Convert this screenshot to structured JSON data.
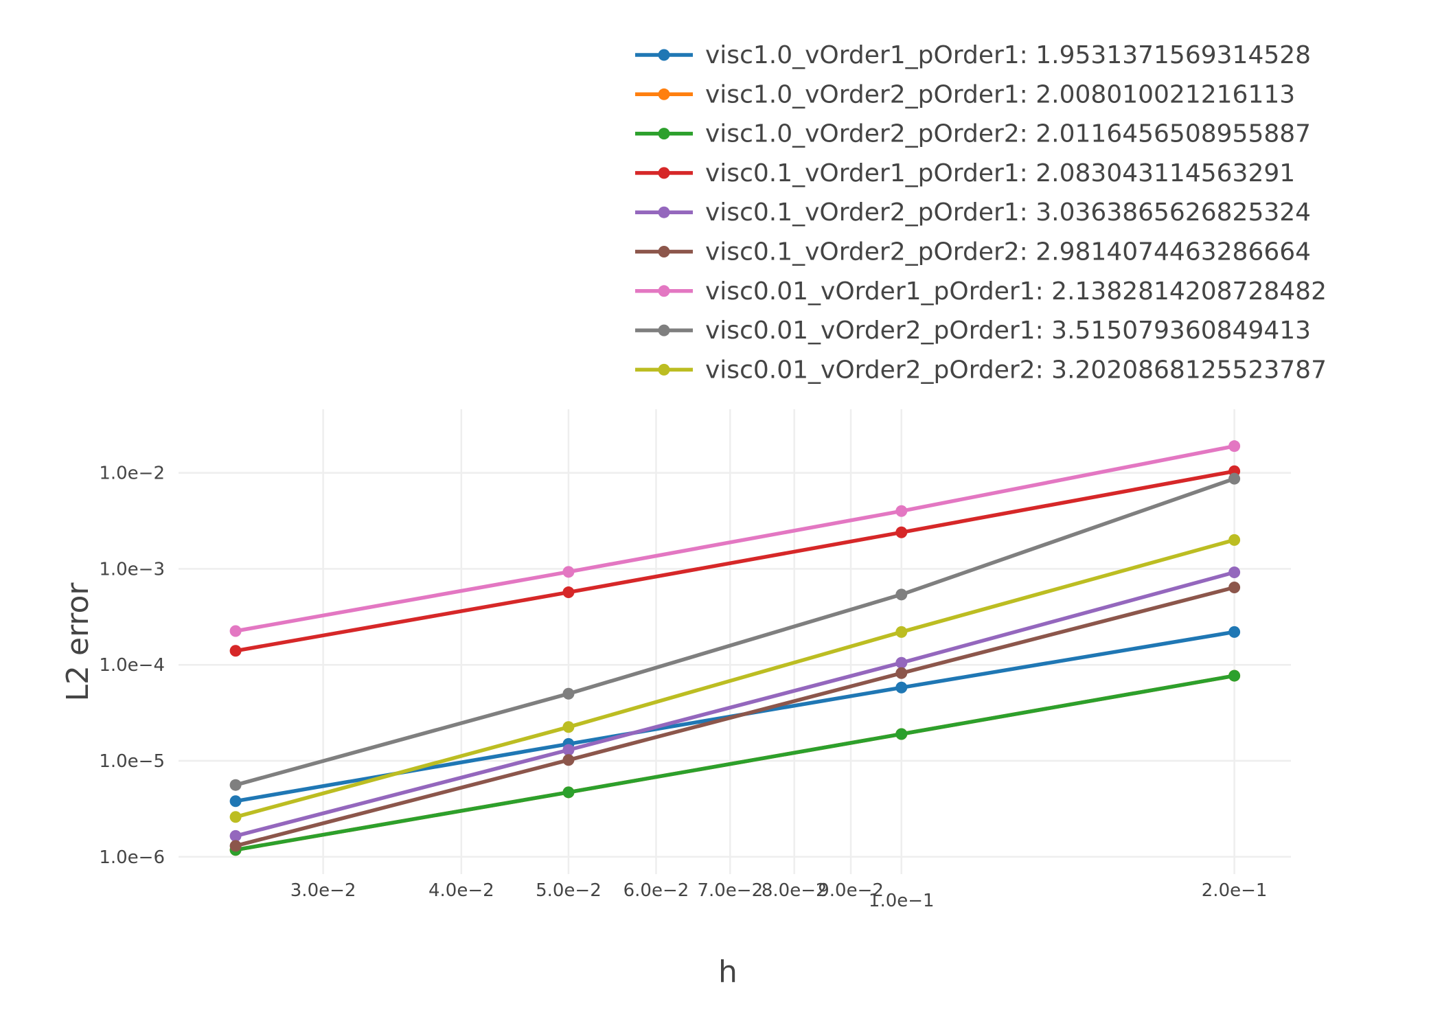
{
  "chart_data": {
    "type": "line",
    "xlabel": "h",
    "ylabel": "L2 error",
    "xscale": "log",
    "yscale": "log",
    "xlim": [
      0.0222,
      0.225
    ],
    "ylim": [
      6.6e-07,
      0.046
    ],
    "x": [
      0.025,
      0.05,
      0.1,
      0.2
    ],
    "x_ticks": [
      {
        "value": 0.03,
        "label": "3.0e−2"
      },
      {
        "value": 0.04,
        "label": "4.0e−2"
      },
      {
        "value": 0.05,
        "label": "5.0e−2"
      },
      {
        "value": 0.06,
        "label": "6.0e−2"
      },
      {
        "value": 0.07,
        "label": "7.0e−2"
      },
      {
        "value": 0.08,
        "label": "8.0e−2"
      },
      {
        "value": 0.09,
        "label": "9.0e−2"
      },
      {
        "value": 0.1,
        "label": "1.0e−1"
      },
      {
        "value": 0.2,
        "label": "2.0e−1"
      }
    ],
    "y_ticks": [
      {
        "value": 1e-06,
        "label": "1.0e−6"
      },
      {
        "value": 1e-05,
        "label": "1.0e−5"
      },
      {
        "value": 0.0001,
        "label": "1.0e−4"
      },
      {
        "value": 0.001,
        "label": "1.0e−3"
      },
      {
        "value": 0.01,
        "label": "1.0e−2"
      }
    ],
    "grid": true,
    "legend_position": "top-right",
    "series": [
      {
        "name": "visc1.0_vOrder1_pOrder1: 1.9531371569314528",
        "color": "#1f77b4",
        "values": [
          3.8e-06,
          1.5e-05,
          5.8e-05,
          0.00022
        ]
      },
      {
        "name": "visc1.0_vOrder2_pOrder1: 2.008010021216113",
        "color": "#ff7f0e",
        "values": [
          1.18e-06,
          4.7e-06,
          1.9e-05,
          7.7e-05
        ]
      },
      {
        "name": "visc1.0_vOrder2_pOrder2: 2.0116456508955887",
        "color": "#2ca02c",
        "values": [
          1.18e-06,
          4.7e-06,
          1.9e-05,
          7.7e-05
        ]
      },
      {
        "name": "visc0.1_vOrder1_pOrder1: 2.083043114563291",
        "color": "#d62728",
        "values": [
          0.00014,
          0.00057,
          0.0024,
          0.0104
        ]
      },
      {
        "name": "visc0.1_vOrder2_pOrder1: 3.0363865626825324",
        "color": "#9467bd",
        "values": [
          1.65e-06,
          1.3e-05,
          0.000105,
          0.00092
        ]
      },
      {
        "name": "visc0.1_vOrder2_pOrder2: 2.9814074463286664",
        "color": "#8c564b",
        "values": [
          1.3e-06,
          1.02e-05,
          8.2e-05,
          0.00064
        ]
      },
      {
        "name": "visc0.01_vOrder1_pOrder1: 2.1382814208728482",
        "color": "#e377c2",
        "values": [
          0.000225,
          0.00093,
          0.004,
          0.019
        ]
      },
      {
        "name": "visc0.01_vOrder2_pOrder1: 3.515079360849413",
        "color": "#7f7f7f",
        "values": [
          5.6e-06,
          5e-05,
          0.00054,
          0.0087
        ]
      },
      {
        "name": "visc0.01_vOrder2_pOrder2: 3.2020868125523787",
        "color": "#bcbd22",
        "values": [
          2.6e-06,
          2.25e-05,
          0.00022,
          0.002
        ]
      }
    ]
  }
}
